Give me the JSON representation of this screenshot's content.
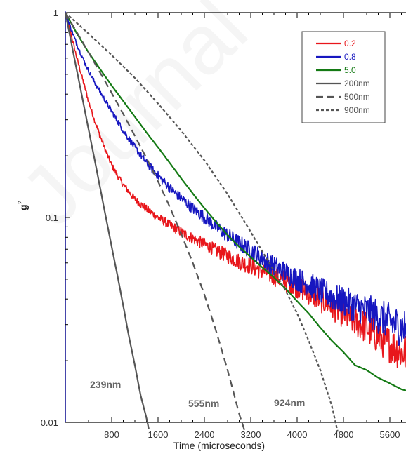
{
  "chart_data": {
    "type": "line",
    "title": "",
    "xlabel": "Time (microseconds)",
    "ylabel": "g2",
    "xlim": [
      0,
      6000
    ],
    "ylim": [
      0.01,
      1
    ],
    "y_scale": "log",
    "x_ticks": [
      800,
      1600,
      2400,
      3200,
      4000,
      4800,
      5600
    ],
    "x_tick_labels": [
      "800",
      "1600",
      "2400",
      "3200",
      "4000",
      "4800",
      "5600"
    ],
    "y_ticks": [
      0.01,
      0.1,
      1
    ],
    "y_tick_labels": [
      "0.01",
      "0.1",
      "1"
    ],
    "grid": false,
    "legend_position": "top-right",
    "series": [
      {
        "name": "0.2",
        "color": "#e8161b",
        "style": "solid",
        "noisy": true,
        "x": [
          0,
          100,
          200,
          300,
          400,
          500,
          600,
          700,
          800,
          900,
          1000,
          1100,
          1200,
          1300,
          1400,
          1600,
          1800,
          2000,
          2200,
          2400,
          2600,
          2800,
          3000,
          3200,
          3400,
          3600,
          3800,
          4000,
          4200,
          4400,
          4600,
          4800,
          5000,
          5200,
          5400,
          5600,
          5800,
          6000
        ],
        "y": [
          1.0,
          0.78,
          0.6,
          0.47,
          0.37,
          0.3,
          0.25,
          0.21,
          0.18,
          0.16,
          0.145,
          0.133,
          0.123,
          0.116,
          0.11,
          0.1,
          0.092,
          0.085,
          0.079,
          0.074,
          0.069,
          0.065,
          0.061,
          0.058,
          0.055,
          0.052,
          0.049,
          0.046,
          0.043,
          0.04,
          0.037,
          0.034,
          0.031,
          0.029,
          0.026,
          0.024,
          0.022,
          0.021
        ]
      },
      {
        "name": "0.8",
        "color": "#1717c0",
        "style": "solid",
        "noisy": true,
        "x": [
          0,
          100,
          200,
          300,
          400,
          500,
          600,
          800,
          1000,
          1200,
          1400,
          1600,
          1800,
          2000,
          2200,
          2400,
          2600,
          2800,
          3000,
          3200,
          3400,
          3600,
          3800,
          4000,
          4200,
          4400,
          4600,
          4800,
          5000,
          5200,
          5400,
          5600,
          5800,
          6000
        ],
        "y": [
          1.0,
          0.83,
          0.7,
          0.6,
          0.52,
          0.46,
          0.41,
          0.33,
          0.265,
          0.22,
          0.185,
          0.16,
          0.14,
          0.124,
          0.111,
          0.1,
          0.09,
          0.082,
          0.075,
          0.069,
          0.063,
          0.058,
          0.054,
          0.05,
          0.047,
          0.044,
          0.041,
          0.039,
          0.037,
          0.035,
          0.033,
          0.031,
          0.029,
          0.028
        ]
      },
      {
        "name": "5.0",
        "color": "#147a14",
        "style": "solid",
        "noisy": false,
        "x": [
          0,
          200,
          400,
          600,
          800,
          1000,
          1200,
          1400,
          1600,
          1800,
          2000,
          2200,
          2400,
          2600,
          2800,
          3000,
          3200,
          3400,
          3600,
          3800,
          4000,
          4200,
          4400,
          4600,
          4800,
          5000,
          5200,
          5400,
          5600,
          5800,
          6000
        ],
        "y": [
          1.0,
          0.79,
          0.64,
          0.53,
          0.44,
          0.37,
          0.31,
          0.26,
          0.22,
          0.185,
          0.155,
          0.131,
          0.111,
          0.095,
          0.082,
          0.072,
          0.064,
          0.057,
          0.051,
          0.045,
          0.039,
          0.034,
          0.029,
          0.025,
          0.022,
          0.019,
          0.018,
          0.0165,
          0.0155,
          0.0145,
          0.014
        ]
      },
      {
        "name": "200nm",
        "color": "#555555",
        "style": "solid",
        "noisy": false,
        "x": [
          0,
          100,
          200,
          300,
          400,
          500,
          600,
          700,
          800,
          900,
          1000,
          1100,
          1200,
          1300,
          1400,
          1450
        ],
        "y": [
          1.0,
          0.72,
          0.52,
          0.375,
          0.27,
          0.195,
          0.14,
          0.1,
          0.072,
          0.052,
          0.037,
          0.026,
          0.019,
          0.0135,
          0.0105,
          0.009
        ]
      },
      {
        "name": "500nm",
        "color": "#555555",
        "style": "dash",
        "noisy": false,
        "x": [
          0,
          200,
          400,
          600,
          800,
          1000,
          1200,
          1400,
          1600,
          1800,
          2000,
          2200,
          2400,
          2600,
          2800,
          3000,
          3100
        ],
        "y": [
          1.0,
          0.8,
          0.64,
          0.51,
          0.405,
          0.32,
          0.25,
          0.195,
          0.15,
          0.113,
          0.083,
          0.06,
          0.042,
          0.028,
          0.018,
          0.011,
          0.009
        ]
      },
      {
        "name": "900nm",
        "color": "#555555",
        "style": "dot",
        "noisy": false,
        "x": [
          0,
          400,
          800,
          1200,
          1600,
          2000,
          2400,
          2800,
          3200,
          3600,
          3800,
          4000,
          4200,
          4400,
          4600,
          4700
        ],
        "y": [
          1.0,
          0.79,
          0.62,
          0.48,
          0.36,
          0.265,
          0.19,
          0.13,
          0.085,
          0.055,
          0.044,
          0.034,
          0.025,
          0.018,
          0.012,
          0.009
        ]
      }
    ],
    "annotations": [
      "239nm",
      "555nm",
      "924nm"
    ]
  },
  "watermark_text": "Journal"
}
